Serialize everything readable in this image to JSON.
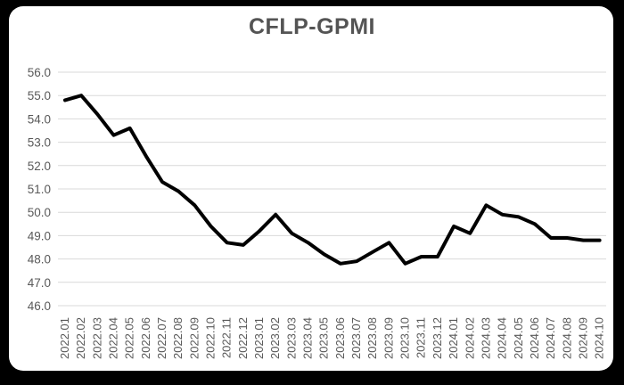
{
  "chart": {
    "title": "CFLP-GPMI"
  },
  "chart_data": {
    "type": "line",
    "title": "CFLP-GPMI",
    "xlabel": "",
    "ylabel": "",
    "x": [
      "2022.01",
      "2022.02",
      "2022.03",
      "2022.04",
      "2022.05",
      "2022.06",
      "2022.07",
      "2022.08",
      "2022.09",
      "2022.10",
      "2022.11",
      "2022.12",
      "2023.01",
      "2023.02",
      "2023.03",
      "2023.04",
      "2023.05",
      "2023.06",
      "2023.07",
      "2023.08",
      "2023.09",
      "2023.10",
      "2023.11",
      "2023.12",
      "2024.01",
      "2024.02",
      "2024.03",
      "2024.04",
      "2024.05",
      "2024.06",
      "2024.07",
      "2024.08",
      "2024.09",
      "2024.10"
    ],
    "values": [
      54.8,
      55.0,
      54.2,
      53.3,
      53.6,
      52.4,
      51.3,
      50.9,
      50.3,
      49.4,
      48.7,
      48.6,
      49.2,
      49.9,
      49.1,
      48.7,
      48.2,
      47.8,
      47.9,
      48.3,
      48.7,
      47.8,
      48.1,
      48.1,
      49.4,
      49.1,
      50.3,
      49.9,
      49.8,
      49.5,
      48.9,
      48.9,
      48.8,
      48.8
    ],
    "ylim": [
      46.0,
      56.0
    ],
    "ytick_step": 1.0,
    "ytick_decimals": 1,
    "grid": true,
    "legend": "none",
    "line_color": "#000000",
    "line_width": 4,
    "grid_color": "#d9d9d9",
    "label_color": "#595959",
    "plot_background": "#ffffff",
    "frame_color": "#000000"
  }
}
